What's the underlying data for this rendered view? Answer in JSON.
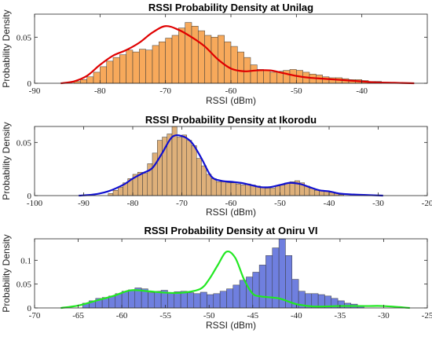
{
  "chart_data": [
    {
      "type": "bar",
      "title": "RSSI Probability Density at Unilag",
      "xlabel": "RSSI (dBm)",
      "ylabel": "Probability Density",
      "xlim": [
        -90,
        -30
      ],
      "ylim": [
        0,
        0.075
      ],
      "xticks": [
        -90,
        -80,
        -70,
        -60,
        -50,
        -40
      ],
      "yticks": [
        0,
        0.05
      ],
      "ytick_labels": [
        "0",
        "0.05"
      ],
      "bar_color": "#f7a95b",
      "curve_color": "#e00000",
      "bin_width": 1,
      "bin_start": -84,
      "values": [
        0.002,
        0.004,
        0.007,
        0.012,
        0.018,
        0.024,
        0.028,
        0.031,
        0.036,
        0.034,
        0.037,
        0.036,
        0.041,
        0.045,
        0.049,
        0.052,
        0.06,
        0.066,
        0.062,
        0.057,
        0.052,
        0.05,
        0.052,
        0.045,
        0.04,
        0.034,
        0.028,
        0.02,
        0.015,
        0.014,
        0.012,
        0.013,
        0.014,
        0.015,
        0.014,
        0.012,
        0.01,
        0.009,
        0.007,
        0.006,
        0.006,
        0.005,
        0.004,
        0.004,
        0.003,
        0.002,
        0.002
      ],
      "curve_x": [
        -86,
        -84,
        -82,
        -80,
        -78,
        -76,
        -74,
        -72,
        -70,
        -68,
        -66,
        -64,
        -62,
        -60,
        -58,
        -56,
        -54,
        -52,
        -50,
        -48,
        -46,
        -44,
        -42,
        -40,
        -38,
        -35,
        -32
      ],
      "curve_y": [
        0.0,
        0.002,
        0.008,
        0.02,
        0.03,
        0.036,
        0.044,
        0.055,
        0.062,
        0.058,
        0.05,
        0.04,
        0.026,
        0.016,
        0.013,
        0.014,
        0.014,
        0.011,
        0.008,
        0.006,
        0.005,
        0.004,
        0.003,
        0.002,
        0.001,
        0.0005,
        0.0
      ]
    },
    {
      "type": "bar",
      "title": "RSSI Probability Density at Ikorodu",
      "xlabel": "RSSI (dBm)",
      "ylabel": "Probability Density",
      "xlim": [
        -100,
        -20
      ],
      "ylim": [
        0,
        0.065
      ],
      "xticks": [
        -100,
        -90,
        -80,
        -70,
        -60,
        -50,
        -40,
        -30,
        -20
      ],
      "yticks": [
        0,
        0.05
      ],
      "ytick_labels": [
        "0",
        "0.05"
      ],
      "bar_color": "#deb07a",
      "curve_color": "#1010d0",
      "bin_width": 1,
      "bin_start": -85,
      "values": [
        0.002,
        0.005,
        0.008,
        0.012,
        0.016,
        0.02,
        0.022,
        0.021,
        0.03,
        0.04,
        0.052,
        0.055,
        0.058,
        0.065,
        0.055,
        0.057,
        0.052,
        0.047,
        0.035,
        0.028,
        0.02,
        0.016,
        0.013,
        0.013,
        0.012,
        0.012,
        0.011,
        0.01,
        0.011,
        0.01,
        0.009,
        0.008,
        0.007,
        0.007,
        0.009,
        0.01,
        0.012,
        0.013,
        0.014,
        0.012,
        0.009,
        0.007,
        0.005,
        0.005,
        0.004,
        0.003,
        0.002,
        0.001
      ],
      "curve_x": [
        -91,
        -88,
        -85,
        -82,
        -80,
        -78,
        -76,
        -74,
        -72,
        -70,
        -68,
        -66,
        -64,
        -62,
        -60,
        -58,
        -56,
        -54,
        -52,
        -50,
        -48,
        -46,
        -44,
        -42,
        -40,
        -38,
        -35,
        -32,
        -29
      ],
      "curve_y": [
        0.0,
        0.001,
        0.004,
        0.01,
        0.016,
        0.021,
        0.026,
        0.04,
        0.055,
        0.056,
        0.05,
        0.035,
        0.018,
        0.014,
        0.013,
        0.012,
        0.01,
        0.008,
        0.008,
        0.01,
        0.012,
        0.011,
        0.008,
        0.005,
        0.004,
        0.002,
        0.001,
        0.0005,
        0.0
      ]
    },
    {
      "type": "bar",
      "title": "RSSI Probability Density at Oniru VI",
      "xlabel": "RSSI (dBm)",
      "ylabel": "Probability Density",
      "xlim": [
        -70,
        -25
      ],
      "ylim": [
        0,
        0.145
      ],
      "xticks": [
        -70,
        -65,
        -60,
        -55,
        -50,
        -45,
        -40,
        -35,
        -30,
        -25
      ],
      "yticks": [
        0,
        0.05,
        0.1
      ],
      "ytick_labels": [
        "0",
        "0.05",
        "0.1"
      ],
      "bar_color": "#6f7fdf",
      "curve_color": "#22e822",
      "bin_width": 0.75,
      "bin_start": -64.5,
      "values": [
        0.01,
        0.015,
        0.02,
        0.022,
        0.025,
        0.03,
        0.035,
        0.038,
        0.042,
        0.04,
        0.032,
        0.035,
        0.037,
        0.032,
        0.034,
        0.035,
        0.032,
        0.03,
        0.033,
        0.028,
        0.03,
        0.035,
        0.04,
        0.048,
        0.058,
        0.065,
        0.075,
        0.09,
        0.11,
        0.126,
        0.145,
        0.11,
        0.06,
        0.035,
        0.03,
        0.03,
        0.028,
        0.025,
        0.02,
        0.015,
        0.01,
        0.008,
        0.005
      ],
      "curve_x": [
        -67,
        -65,
        -63,
        -61,
        -59,
        -57,
        -55,
        -53,
        -51,
        -50,
        -49,
        -48,
        -47,
        -46,
        -45,
        -44,
        -42,
        -40,
        -38,
        -35,
        -32,
        -30,
        -27
      ],
      "curve_y": [
        0.0,
        0.005,
        0.015,
        0.025,
        0.037,
        0.035,
        0.032,
        0.032,
        0.04,
        0.06,
        0.09,
        0.118,
        0.105,
        0.06,
        0.03,
        0.024,
        0.02,
        0.008,
        0.003,
        0.004,
        0.004,
        0.004,
        0.0
      ]
    }
  ]
}
